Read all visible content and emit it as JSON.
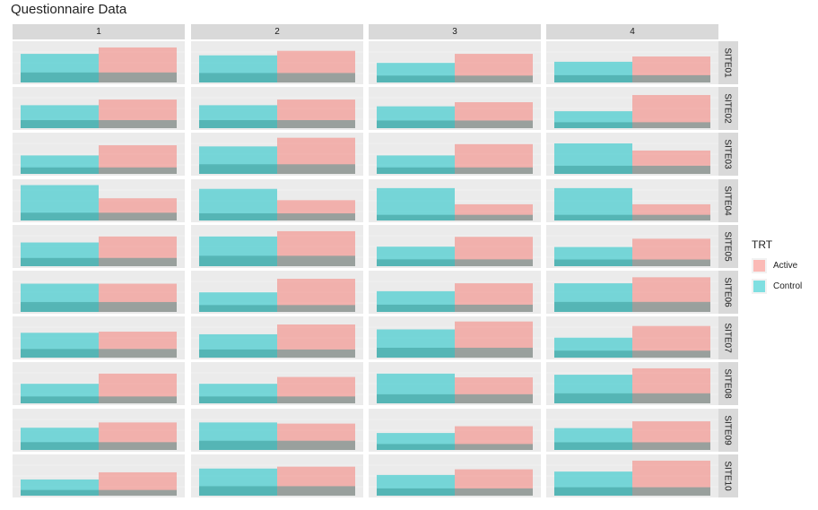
{
  "chart_data": {
    "type": "bar",
    "title": "Questionnaire Data",
    "facet_columns": [
      "1",
      "2",
      "3",
      "4"
    ],
    "facet_rows": [
      "SITE01",
      "SITE02",
      "SITE03",
      "SITE04",
      "SITE05",
      "SITE06",
      "SITE07",
      "SITE08",
      "SITE09",
      "SITE10"
    ],
    "panel_ymax": 10,
    "legend": {
      "title": "TRT",
      "position": "right"
    },
    "series": [
      {
        "name": "Active",
        "color": "#f8766d"
      },
      {
        "name": "Control",
        "color": "#00bfc4"
      }
    ],
    "values": {
      "SITE01": [
        {
          "Control": 7.6,
          "Active": 9.3
        },
        {
          "Control": 7.2,
          "Active": 8.4
        },
        {
          "Control": 5.2,
          "Active": 7.6
        },
        {
          "Control": 5.5,
          "Active": 6.9
        }
      ],
      "SITE02": [
        {
          "Control": 6.1,
          "Active": 7.6
        },
        {
          "Control": 6.1,
          "Active": 7.6
        },
        {
          "Control": 5.8,
          "Active": 6.9
        },
        {
          "Control": 4.5,
          "Active": 8.8
        }
      ],
      "SITE03": [
        {
          "Control": 4.9,
          "Active": 7.6
        },
        {
          "Control": 7.3,
          "Active": 9.6
        },
        {
          "Control": 4.9,
          "Active": 7.9
        },
        {
          "Control": 8.1,
          "Active": 6.2
        }
      ],
      "SITE04": [
        {
          "Control": 9.4,
          "Active": 5.9
        },
        {
          "Control": 8.4,
          "Active": 5.4
        },
        {
          "Control": 8.6,
          "Active": 4.3
        },
        {
          "Control": 8.6,
          "Active": 4.3
        }
      ],
      "SITE05": [
        {
          "Control": 6.3,
          "Active": 7.9
        },
        {
          "Control": 7.9,
          "Active": 9.3
        },
        {
          "Control": 5.2,
          "Active": 7.8
        },
        {
          "Control": 5.1,
          "Active": 7.3
        }
      ],
      "SITE06": [
        {
          "Control": 7.5,
          "Active": 7.5
        },
        {
          "Control": 5.2,
          "Active": 8.8
        },
        {
          "Control": 5.5,
          "Active": 7.6
        },
        {
          "Control": 7.6,
          "Active": 9.2
        }
      ],
      "SITE07": [
        {
          "Control": 6.6,
          "Active": 6.9
        },
        {
          "Control": 6.2,
          "Active": 8.8
        },
        {
          "Control": 7.5,
          "Active": 9.6
        },
        {
          "Control": 5.3,
          "Active": 8.4
        }
      ],
      "SITE08": [
        {
          "Control": 5.2,
          "Active": 7.9
        },
        {
          "Control": 5.2,
          "Active": 7.0
        },
        {
          "Control": 7.9,
          "Active": 6.9
        },
        {
          "Control": 7.6,
          "Active": 9.3
        }
      ],
      "SITE09": [
        {
          "Control": 5.9,
          "Active": 7.3
        },
        {
          "Control": 7.3,
          "Active": 7.0
        },
        {
          "Control": 4.5,
          "Active": 6.3
        },
        {
          "Control": 5.8,
          "Active": 7.6
        }
      ],
      "SITE10": [
        {
          "Control": 4.3,
          "Active": 6.2
        },
        {
          "Control": 7.2,
          "Active": 7.7
        },
        {
          "Control": 5.5,
          "Active": 7.0
        },
        {
          "Control": 6.4,
          "Active": 9.3
        }
      ]
    }
  }
}
